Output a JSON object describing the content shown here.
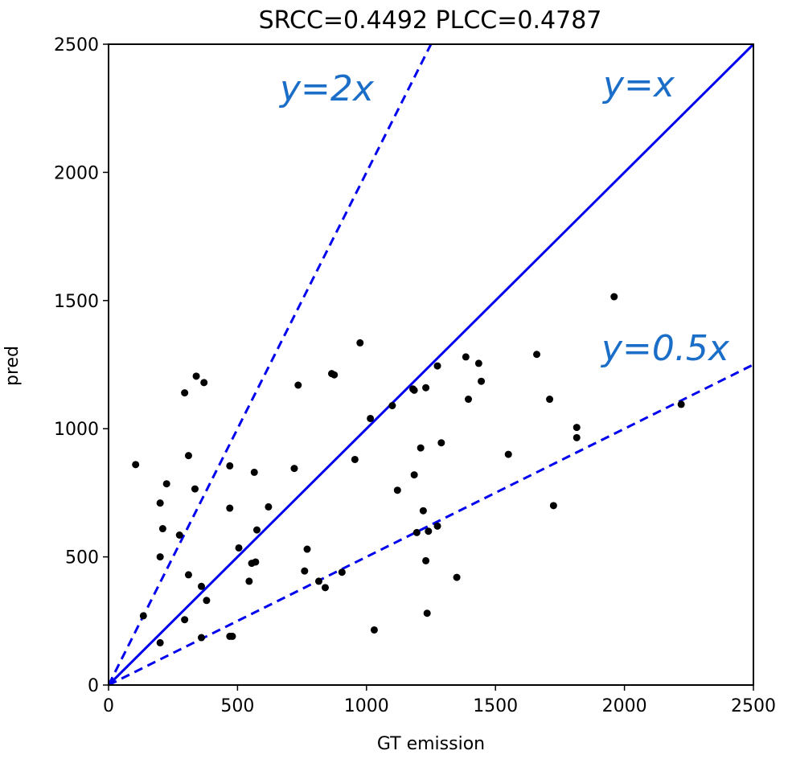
{
  "chart_data": {
    "type": "scatter",
    "title": "SRCC=0.4492 PLCC=0.4787",
    "xlabel": "GT emission",
    "ylabel": "pred",
    "xlim": [
      0,
      2500
    ],
    "ylim": [
      0,
      2500
    ],
    "xticks": [
      "0",
      "500",
      "1000",
      "1500",
      "2000",
      "2500"
    ],
    "yticks": [
      "0",
      "500",
      "1000",
      "1500",
      "2000",
      "2500"
    ],
    "grid": false,
    "point_color": "#000000",
    "reference_lines": [
      {
        "label": "y=2x",
        "slope": 2,
        "style": "dashed",
        "color": "#0000ee",
        "label_color": "#1a6ec8"
      },
      {
        "label": "y=x",
        "slope": 1,
        "style": "solid",
        "color": "#0000ee",
        "label_color": "#1a6ec8"
      },
      {
        "label": "y=0.5x",
        "slope": 0.5,
        "style": "dashed",
        "color": "#0000ee",
        "label_color": "#1a6ec8"
      }
    ],
    "points": [
      [
        105,
        860
      ],
      [
        135,
        270
      ],
      [
        200,
        710
      ],
      [
        200,
        500
      ],
      [
        200,
        165
      ],
      [
        210,
        610
      ],
      [
        225,
        785
      ],
      [
        275,
        585
      ],
      [
        295,
        1140
      ],
      [
        295,
        255
      ],
      [
        310,
        895
      ],
      [
        310,
        430
      ],
      [
        335,
        765
      ],
      [
        340,
        1205
      ],
      [
        360,
        385
      ],
      [
        360,
        185
      ],
      [
        370,
        1180
      ],
      [
        380,
        330
      ],
      [
        470,
        690
      ],
      [
        470,
        855
      ],
      [
        470,
        190
      ],
      [
        480,
        190
      ],
      [
        505,
        535
      ],
      [
        545,
        405
      ],
      [
        555,
        475
      ],
      [
        565,
        830
      ],
      [
        570,
        480
      ],
      [
        575,
        605
      ],
      [
        620,
        695
      ],
      [
        720,
        845
      ],
      [
        735,
        1170
      ],
      [
        760,
        445
      ],
      [
        770,
        530
      ],
      [
        815,
        405
      ],
      [
        840,
        380
      ],
      [
        865,
        1215
      ],
      [
        875,
        1210
      ],
      [
        905,
        440
      ],
      [
        955,
        880
      ],
      [
        975,
        1335
      ],
      [
        1015,
        1040
      ],
      [
        1030,
        215
      ],
      [
        1100,
        1090
      ],
      [
        1120,
        760
      ],
      [
        1180,
        1155
      ],
      [
        1185,
        1150
      ],
      [
        1185,
        820
      ],
      [
        1195,
        595
      ],
      [
        1210,
        925
      ],
      [
        1220,
        680
      ],
      [
        1230,
        1160
      ],
      [
        1230,
        485
      ],
      [
        1235,
        280
      ],
      [
        1240,
        600
      ],
      [
        1275,
        1245
      ],
      [
        1275,
        620
      ],
      [
        1290,
        945
      ],
      [
        1350,
        420
      ],
      [
        1385,
        1280
      ],
      [
        1395,
        1115
      ],
      [
        1435,
        1255
      ],
      [
        1445,
        1185
      ],
      [
        1550,
        900
      ],
      [
        1660,
        1290
      ],
      [
        1710,
        1115
      ],
      [
        1725,
        700
      ],
      [
        1815,
        1005
      ],
      [
        1815,
        965
      ],
      [
        1960,
        1515
      ],
      [
        2220,
        1095
      ]
    ]
  }
}
